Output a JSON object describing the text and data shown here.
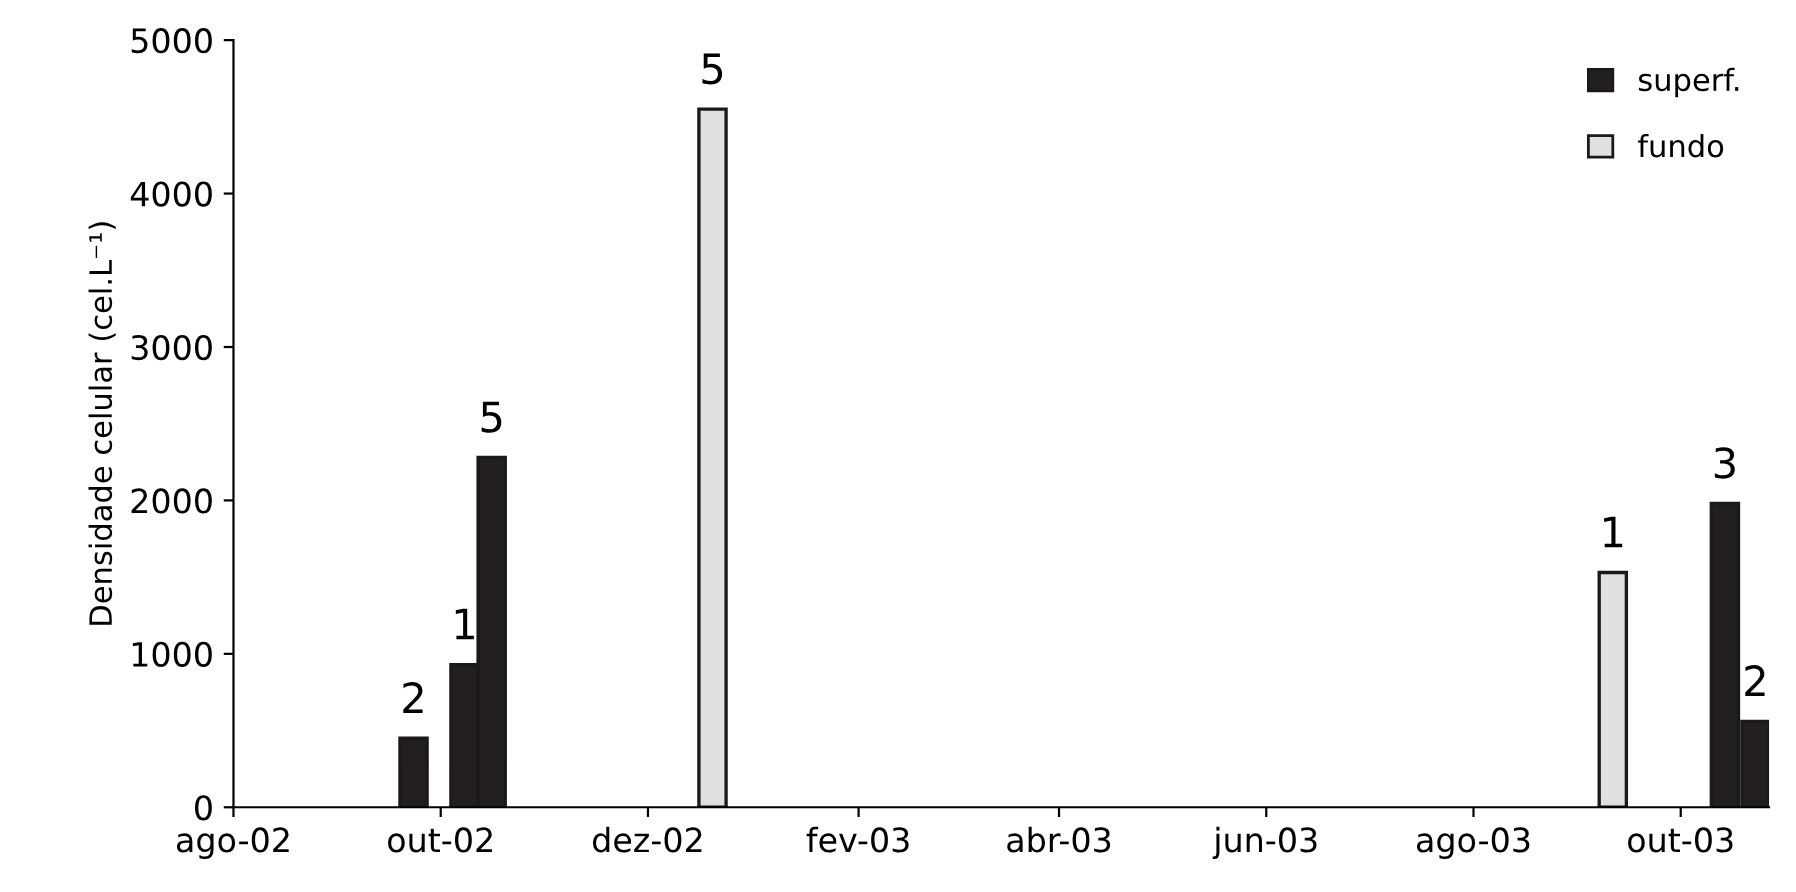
{
  "chart_data": {
    "type": "bar",
    "ylabel": "Densidade celular (cel.L⁻¹)",
    "series": [
      {
        "name": "superf.",
        "color": "#231f20",
        "x": [
          "2002-09-23",
          "2002-10-08",
          "2002-10-16",
          "2003-10-14",
          "2003-10-23"
        ],
        "values": [
          450,
          930,
          2280,
          1980,
          560
        ]
      },
      {
        "name": "fundo",
        "color": "#e0e0e0",
        "x": [
          "2002-12-20",
          "2003-09-11"
        ],
        "values": [
          4550,
          1530
        ]
      }
    ],
    "annotations": [
      {
        "text": "2",
        "x": "2002-09-23",
        "y": 450
      },
      {
        "text": "1",
        "x": "2002-10-08",
        "y": 930
      },
      {
        "text": "5",
        "x": "2002-10-16",
        "y": 2280
      },
      {
        "text": "5",
        "x": "2002-12-20",
        "y": 4550
      },
      {
        "text": "1",
        "x": "2003-09-11",
        "y": 1530
      },
      {
        "text": "3",
        "x": "2003-10-14",
        "y": 1980
      },
      {
        "text": "2",
        "x": "2003-10-23",
        "y": 560
      }
    ],
    "xlim": [
      "2002-08-01",
      "2003-10-27"
    ],
    "xticks": [
      {
        "value": "2002-08-01",
        "label": "ago-02"
      },
      {
        "value": "2002-10-01",
        "label": "out-02"
      },
      {
        "value": "2002-12-01",
        "label": "dez-02"
      },
      {
        "value": "2003-02-01",
        "label": "fev-03"
      },
      {
        "value": "2003-04-01",
        "label": "abr-03"
      },
      {
        "value": "2003-06-01",
        "label": "jun-03"
      },
      {
        "value": "2003-08-01",
        "label": "ago-03"
      },
      {
        "value": "2003-10-01",
        "label": "out-03"
      }
    ],
    "ylim": [
      0,
      5000
    ],
    "yticks": [
      0,
      1000,
      2000,
      3000,
      4000,
      5000
    ],
    "grid": false,
    "legend": "top right"
  }
}
